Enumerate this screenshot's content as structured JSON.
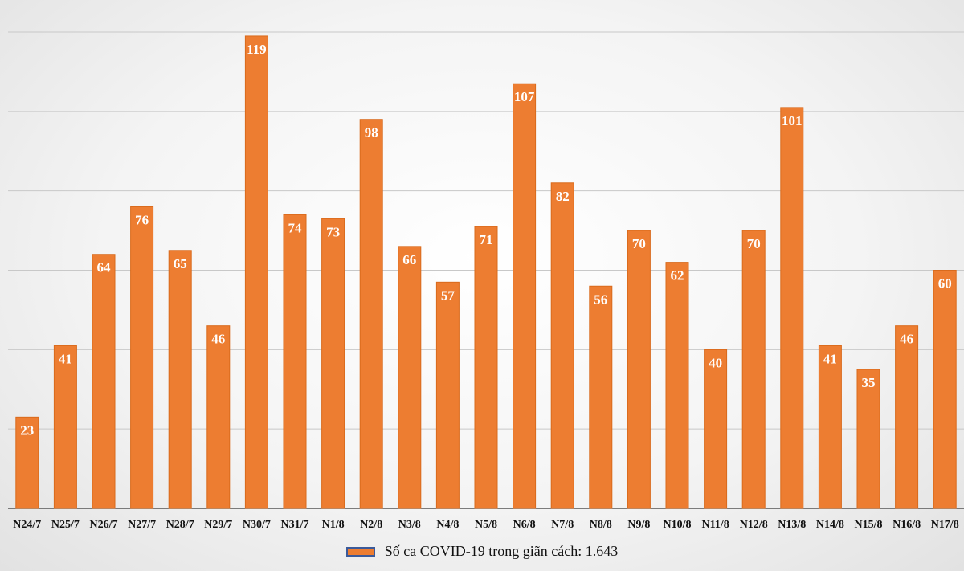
{
  "chart_data": {
    "type": "bar",
    "categories": [
      "N24/7",
      "N25/7",
      "N26/7",
      "N27/7",
      "N28/7",
      "N29/7",
      "N30/7",
      "N31/7",
      "N1/8",
      "N2/8",
      "N3/8",
      "N4/8",
      "N5/8",
      "N6/8",
      "N7/8",
      "N8/8",
      "N9/8",
      "N10/8",
      "N11/8",
      "N12/8",
      "N13/8",
      "N14/8",
      "N15/8",
      "N16/8",
      "N17/8"
    ],
    "series": [
      {
        "name": "Số ca COVID-19 trong giãn cách: 1.643",
        "values": [
          23,
          41,
          64,
          76,
          65,
          46,
          119,
          74,
          73,
          98,
          66,
          57,
          71,
          107,
          82,
          56,
          70,
          62,
          40,
          70,
          101,
          41,
          35,
          46,
          60
        ]
      }
    ],
    "ylim": [
      0,
      120
    ],
    "grid": true,
    "legend_position": "bottom",
    "colors": {
      "bar": "#ed7d31",
      "bar_border": "#d96a1c",
      "label": "#ffffff",
      "grid": "#c8c8c8",
      "axis": "#555555",
      "legend_border": "#3b5a9a"
    }
  }
}
